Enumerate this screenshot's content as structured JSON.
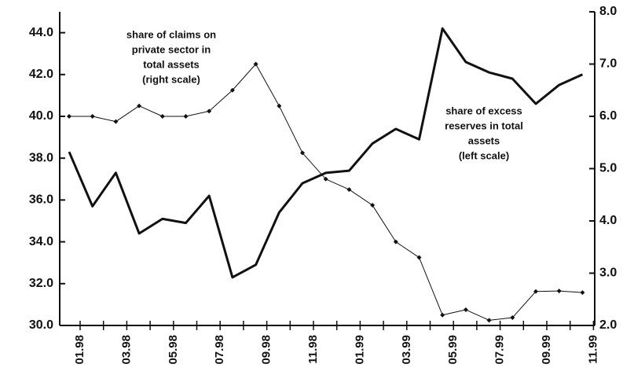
{
  "chart_data": {
    "type": "line",
    "categories": [
      "01.98",
      null,
      "03.98",
      null,
      "05.98",
      null,
      "07.98",
      null,
      "09.98",
      null,
      "11.98",
      null,
      "01.99",
      null,
      "03.99",
      null,
      "05.99",
      null,
      "07.99",
      null,
      "09.99",
      null,
      "11.99"
    ],
    "series": [
      {
        "name": "share of excess reserves in total assets (left scale)",
        "color": "#111111",
        "axis": "y",
        "values": [
          38.3,
          35.7,
          37.3,
          34.4,
          35.1,
          34.9,
          36.2,
          32.3,
          32.9,
          35.4,
          36.8,
          37.3,
          37.4,
          38.7,
          39.4,
          38.9,
          44.2,
          42.6,
          42.1,
          41.8,
          40.6,
          41.5,
          42.0
        ]
      },
      {
        "name": "share of claims on private sector in total assets (right scale)",
        "color": "#111111",
        "axis": "y2",
        "values": [
          6.0,
          6.0,
          5.9,
          6.2,
          6.0,
          6.0,
          6.1,
          6.5,
          7.0,
          6.2,
          5.3,
          4.8,
          4.6,
          4.3,
          3.6,
          3.3,
          2.2,
          2.3,
          2.1,
          2.15,
          2.65,
          2.66,
          2.63
        ]
      }
    ],
    "annotations": [
      {
        "lines": [
          "share of claims on",
          "private sector in",
          "total assets",
          "(right scale)"
        ]
      },
      {
        "lines": [
          "share of excess",
          "reserves in total",
          "assets",
          "(left scale)"
        ]
      }
    ],
    "ylim": [
      30,
      45
    ],
    "yticks": [
      {
        "value": 30,
        "label": "30.0"
      },
      {
        "value": 32,
        "label": "32.0"
      },
      {
        "value": 34,
        "label": "34.0"
      },
      {
        "value": 36,
        "label": "36.0"
      },
      {
        "value": 38,
        "label": "38.0"
      },
      {
        "value": 40,
        "label": "40.0"
      },
      {
        "value": 42,
        "label": "42.0"
      },
      {
        "value": 44,
        "label": "44.0"
      }
    ],
    "y2lim": [
      2,
      8
    ],
    "y2ticks": [
      {
        "value": 2,
        "label": "2.0"
      },
      {
        "value": 3,
        "label": "3.0"
      },
      {
        "value": 4,
        "label": "4.0"
      },
      {
        "value": 5,
        "label": "5.0"
      },
      {
        "value": 6,
        "label": "6.0"
      },
      {
        "value": 7,
        "label": "7.0"
      },
      {
        "value": 8,
        "label": "8.0"
      }
    ],
    "grid": false
  }
}
